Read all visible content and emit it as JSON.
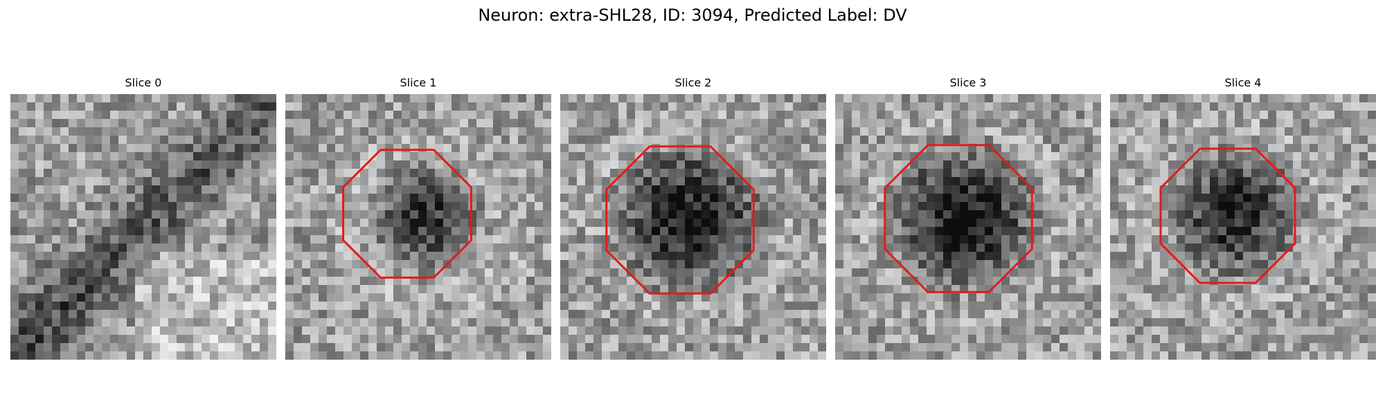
{
  "figure": {
    "title": "Neuron: extra-SHL28, ID: 3094, Predicted Label: DV"
  },
  "outline_color": "#e41a1c",
  "panels": [
    {
      "title": "Slice 0",
      "seed": 101,
      "pattern": "diagonal",
      "has_outline": false
    },
    {
      "title": "Slice 1",
      "seed": 202,
      "pattern": "blob-small",
      "has_outline": true
    },
    {
      "title": "Slice 2",
      "seed": 303,
      "pattern": "blob-large",
      "has_outline": true
    },
    {
      "title": "Slice 3",
      "seed": 404,
      "pattern": "blob-large",
      "has_outline": true
    },
    {
      "title": "Slice 4",
      "seed": 505,
      "pattern": "blob-medium",
      "has_outline": true
    }
  ]
}
